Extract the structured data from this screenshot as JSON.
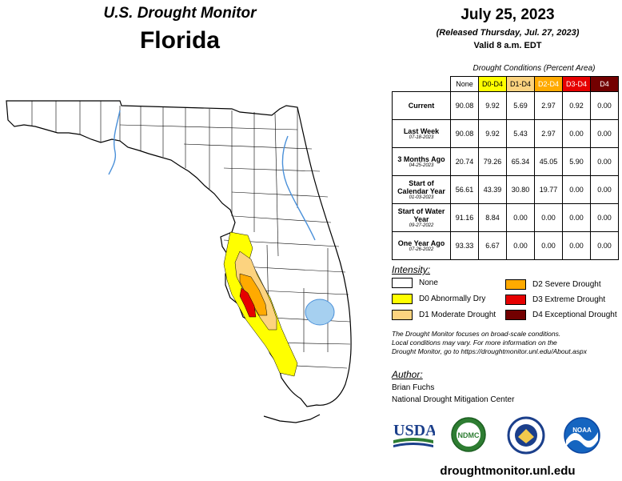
{
  "header": {
    "title": "U.S. Drought Monitor",
    "state": "Florida",
    "date": "July 25, 2023",
    "released": "(Released Thursday, Jul. 27, 2023)",
    "valid": "Valid 8 a.m. EDT"
  },
  "table": {
    "caption": "Drought Conditions (Percent Area)",
    "columns": [
      "None",
      "D0-D4",
      "D1-D4",
      "D2-D4",
      "D3-D4",
      "D4"
    ],
    "column_colors": [
      "#ffffff",
      "#ffff00",
      "#fcd37f",
      "#ffaa00",
      "#e60000",
      "#730000"
    ],
    "column_text_colors": [
      "#000000",
      "#000000",
      "#000000",
      "#ffffff",
      "#ffffff",
      "#ffffff"
    ],
    "rows": [
      {
        "label": "Current",
        "date": "",
        "values": [
          "90.08",
          "9.92",
          "5.69",
          "2.97",
          "0.92",
          "0.00"
        ]
      },
      {
        "label": "Last Week",
        "date": "07-18-2023",
        "values": [
          "90.08",
          "9.92",
          "5.43",
          "2.97",
          "0.00",
          "0.00"
        ]
      },
      {
        "label": "3 Months Ago",
        "date": "04-25-2023",
        "values": [
          "20.74",
          "79.26",
          "65.34",
          "45.05",
          "5.90",
          "0.00"
        ]
      },
      {
        "label": "Start of Calendar Year",
        "date": "01-03-2023",
        "values": [
          "56.61",
          "43.39",
          "30.80",
          "19.77",
          "0.00",
          "0.00"
        ]
      },
      {
        "label": "Start of Water Year",
        "date": "09-27-2022",
        "values": [
          "91.16",
          "8.84",
          "0.00",
          "0.00",
          "0.00",
          "0.00"
        ]
      },
      {
        "label": "One Year Ago",
        "date": "07-26-2022",
        "values": [
          "93.33",
          "6.67",
          "0.00",
          "0.00",
          "0.00",
          "0.00"
        ]
      }
    ]
  },
  "intensity": {
    "title": "Intensity:",
    "items": [
      {
        "label": "None",
        "color": "#ffffff"
      },
      {
        "label": "D0 Abnormally Dry",
        "color": "#ffff00"
      },
      {
        "label": "D1 Moderate Drought",
        "color": "#fcd37f"
      },
      {
        "label": "D2 Severe Drought",
        "color": "#ffaa00"
      },
      {
        "label": "D3 Extreme Drought",
        "color": "#e60000"
      },
      {
        "label": "D4 Exceptional Drought",
        "color": "#730000"
      }
    ]
  },
  "note": {
    "line1": "The Drought Monitor focuses on broad-scale conditions.",
    "line2": "Local conditions may vary. For more information on the",
    "line3": "Drought Monitor, go to https://droughtmonitor.unl.edu/About.aspx"
  },
  "author": {
    "title": "Author:",
    "name": "Brian Fuchs",
    "org": "National Drought Mitigation Center"
  },
  "logos": {
    "usda": "USDA",
    "ndmc": "NDMC",
    "noaa": "NOAA"
  },
  "footer": {
    "url": "droughtmonitor.unl.edu"
  }
}
